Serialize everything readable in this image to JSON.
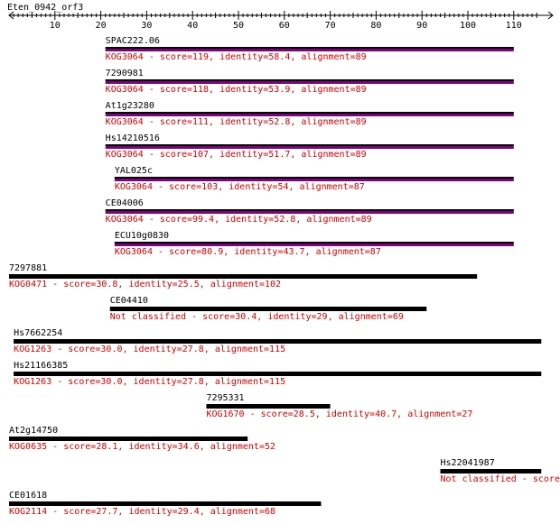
{
  "query": {
    "name": "Eten_0942_orf3",
    "axis_min": 0,
    "axis_max": 115,
    "ticks": [
      10,
      20,
      30,
      40,
      50,
      60,
      70,
      80,
      90,
      100,
      110
    ]
  },
  "colors": {
    "text": "#000000",
    "desc": "#cc0000",
    "bar_primary": "#000000",
    "bar_secondary": "#800080"
  },
  "hits": [
    {
      "name": "SPAC222.06",
      "start": 21,
      "end": 110,
      "style": "double",
      "desc": "KOG3064 - score=119, identity=58.4, alignment=89"
    },
    {
      "name": "7290981",
      "start": 21,
      "end": 110,
      "style": "double",
      "desc": "KOG3064 - score=118, identity=53.9, alignment=89"
    },
    {
      "name": "At1g23280",
      "start": 21,
      "end": 110,
      "style": "double",
      "desc": "KOG3064 - score=111, identity=52.8, alignment=89"
    },
    {
      "name": "Hs14210516",
      "start": 21,
      "end": 110,
      "style": "double",
      "desc": "KOG3064 - score=107, identity=51.7, alignment=89"
    },
    {
      "name": "YAL025c",
      "start": 23,
      "end": 110,
      "style": "double",
      "desc": "KOG3064 - score=103, identity=54, alignment=87"
    },
    {
      "name": "CE04006",
      "start": 21,
      "end": 110,
      "style": "double",
      "desc": "KOG3064 - score=99.4, identity=52.8, alignment=89"
    },
    {
      "name": "ECU10g0830",
      "start": 23,
      "end": 110,
      "style": "double",
      "desc": "KOG3064 - score=80.9, identity=43.7, alignment=87"
    },
    {
      "name": "7297881",
      "start": 0,
      "end": 102,
      "style": "single",
      "desc": "KOG0471 - score=30.8, identity=25.5, alignment=102"
    },
    {
      "name": "CE04410",
      "start": 22,
      "end": 91,
      "style": "single",
      "desc": "Not classified - score=30.4, identity=29, alignment=69"
    },
    {
      "name": "Hs7662254",
      "start": 1,
      "end": 116,
      "style": "single",
      "desc": "KOG1263 - score=30.0, identity=27.8, alignment=115"
    },
    {
      "name": "Hs21166385",
      "start": 1,
      "end": 116,
      "style": "single",
      "desc": "KOG1263 - score=30.0, identity=27.8, alignment=115"
    },
    {
      "name": "7295331",
      "start": 43,
      "end": 70,
      "style": "single",
      "desc": "KOG1670 - score=28.5, identity=40.7, alignment=27"
    },
    {
      "name": "At2g14750",
      "start": 0,
      "end": 52,
      "style": "single",
      "desc": "KOG0635 - score=28.1, identity=34.6, alignment=52"
    },
    {
      "name": "Hs22041987",
      "start": 94,
      "end": 116,
      "style": "single",
      "desc": "Not classified - score="
    },
    {
      "name": "CE01618",
      "start": 0,
      "end": 68,
      "style": "single",
      "desc": "KOG2114 - score=27.7, identity=29.4, alignment=68"
    }
  ]
}
